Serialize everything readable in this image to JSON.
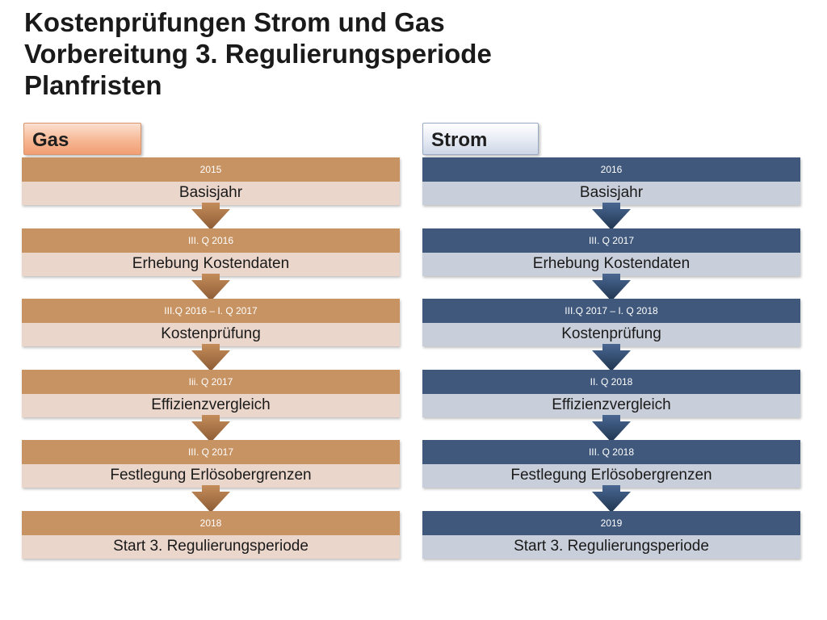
{
  "title": {
    "line1": "Kostenprüfungen Strom und Gas",
    "line2": "Vorbereitung 3. Regulierungsperiode",
    "line3": "Planfristen"
  },
  "colors": {
    "gas_date": "#c89363",
    "gas_label": "#ead6cb",
    "strom_date": "#3f587c",
    "strom_label": "#c9cfda"
  },
  "gas": {
    "header": "Gas",
    "steps": [
      {
        "date": "2015",
        "label": "Basisjahr"
      },
      {
        "date": "III. Q 2016",
        "label": "Erhebung Kostendaten"
      },
      {
        "date": "III.Q 2016 – I. Q 2017",
        "label": "Kostenprüfung"
      },
      {
        "date": "Iii. Q 2017",
        "label": "Effizienzvergleich"
      },
      {
        "date": "III. Q 2017",
        "label": "Festlegung Erlösobergrenzen"
      },
      {
        "date": "2018",
        "label": "Start 3. Regulierungsperiode"
      }
    ]
  },
  "strom": {
    "header": "Strom",
    "steps": [
      {
        "date": "2016",
        "label": "Basisjahr"
      },
      {
        "date": "III. Q 2017",
        "label": "Erhebung Kostendaten"
      },
      {
        "date": "III.Q 2017 – I. Q 2018",
        "label": "Kostenprüfung"
      },
      {
        "date": "II. Q 2018",
        "label": "Effizienzvergleich"
      },
      {
        "date": "III. Q 2018",
        "label": "Festlegung Erlösobergrenzen"
      },
      {
        "date": "2019",
        "label": "Start 3. Regulierungsperiode"
      }
    ]
  }
}
